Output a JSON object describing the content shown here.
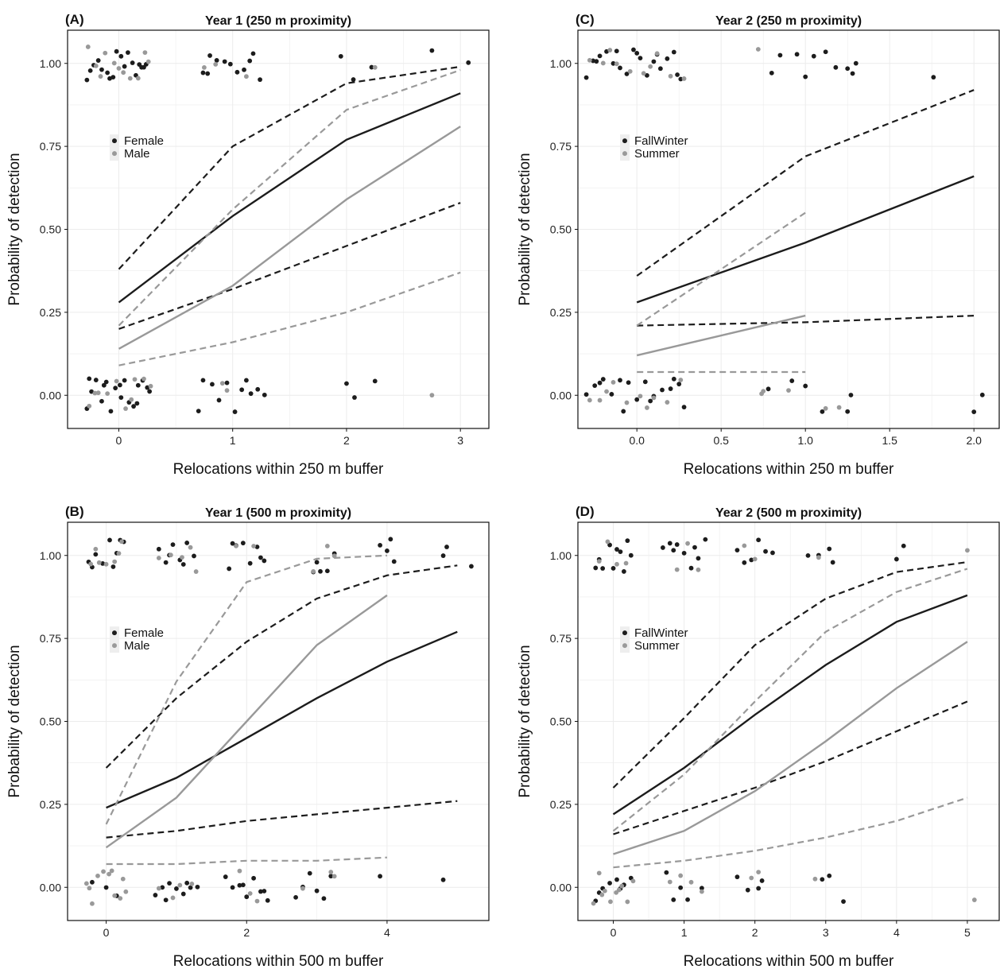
{
  "colors": {
    "series1": "#1c1c1c",
    "series2": "#999999",
    "grid": "#ececec",
    "frame": "#111111"
  },
  "chart_data": [
    {
      "panel": "(A)",
      "type": "line",
      "title": "Year 1 (250 m proximity)",
      "xlabel": "Relocations within 250 m buffer",
      "ylabel": "Probability of detection",
      "xlim": [
        -0.45,
        3.25
      ],
      "ylim": [
        -0.1,
        1.1
      ],
      "xticks": [
        0,
        1,
        2,
        3
      ],
      "xtick_labels": [
        "0",
        "1",
        "2",
        "3"
      ],
      "yticks": [
        0,
        0.25,
        0.5,
        0.75,
        1
      ],
      "ytick_labels": [
        "0.00",
        "0.25",
        "0.50",
        "0.75",
        "1.00"
      ],
      "grid": true,
      "legend": {
        "placement": "upper-left",
        "entries": [
          "Female",
          "Male"
        ]
      },
      "series": [
        {
          "name": "Female",
          "fit": {
            "x": [
              0,
              1,
              2,
              3
            ],
            "y": [
              0.28,
              0.54,
              0.77,
              0.91
            ]
          },
          "upper": {
            "x": [
              0,
              1,
              2,
              3
            ],
            "y": [
              0.38,
              0.75,
              0.94,
              0.99
            ]
          },
          "lower": {
            "x": [
              0,
              1,
              2,
              3
            ],
            "y": [
              0.2,
              0.32,
              0.45,
              0.58
            ]
          },
          "points": [
            {
              "x": [
                -0.28,
                -0.22,
                -0.15,
                -0.08,
                -0.02,
                0.05,
                0.12,
                0.18,
                0.24,
                -0.25,
                -0.1,
                0.02,
                0.15,
                0.2,
                -0.18,
                0.08,
                0.22,
                -0.05,
                0.74,
                0.8,
                0.86,
                0.93,
                0.98,
                1.04,
                1.1,
                1.18,
                1.24,
                0.78,
                1.15,
                1.95,
                2.06,
                2.22,
                2.75,
                3.07
              ],
              "y": 1
            },
            {
              "x": [
                -0.28,
                -0.24,
                -0.2,
                -0.15,
                -0.11,
                -0.07,
                -0.03,
                0.01,
                0.05,
                0.09,
                0.13,
                0.17,
                0.21,
                0.25,
                -0.26,
                -0.13,
                0.02,
                0.16,
                0.27,
                0.7,
                0.74,
                0.82,
                0.88,
                0.95,
                1.02,
                1.08,
                1.12,
                1.16,
                1.22,
                1.28,
                2.0,
                2.07,
                2.25
              ],
              "y": 0
            }
          ]
        },
        {
          "name": "Male",
          "fit": {
            "x": [
              0,
              1,
              2,
              3
            ],
            "y": [
              0.14,
              0.33,
              0.59,
              0.81
            ]
          },
          "upper": {
            "x": [
              0,
              1,
              2,
              3
            ],
            "y": [
              0.21,
              0.56,
              0.86,
              0.98
            ]
          },
          "lower": {
            "x": [
              0,
              1,
              2,
              3
            ],
            "y": [
              0.09,
              0.16,
              0.25,
              0.37
            ]
          },
          "points": [
            {
              "x": [
                -0.27,
                -0.2,
                -0.12,
                -0.04,
                0.04,
                0.1,
                0.17,
                0.23,
                -0.16,
                0.0,
                0.26,
                0.75,
                0.85,
                1.12,
                2.25
              ],
              "y": 1
            },
            {
              "x": [
                -0.26,
                -0.18,
                -0.1,
                -0.02,
                0.06,
                0.14,
                0.22,
                0.28,
                -0.21,
                0.11,
                0.91,
                0.95,
                2.75
              ],
              "y": 0
            }
          ]
        }
      ]
    },
    {
      "panel": "(B)",
      "type": "line",
      "title": "Year 1 (500 m proximity)",
      "xlabel": "Relocations within 500 m buffer",
      "ylabel": "Probability of detection",
      "xlim": [
        -0.55,
        5.45
      ],
      "ylim": [
        -0.1,
        1.1
      ],
      "xticks": [
        0,
        2,
        4
      ],
      "xtick_labels": [
        "0",
        "2",
        "4"
      ],
      "yticks": [
        0,
        0.25,
        0.5,
        0.75,
        1
      ],
      "ytick_labels": [
        "0.00",
        "0.25",
        "0.50",
        "0.75",
        "1.00"
      ],
      "grid": true,
      "legend": {
        "placement": "upper-left",
        "entries": [
          "Female",
          "Male"
        ]
      },
      "series": [
        {
          "name": "Female",
          "fit": {
            "x": [
              0,
              1,
              2,
              3,
              4,
              5
            ],
            "y": [
              0.24,
              0.33,
              0.45,
              0.57,
              0.68,
              0.77
            ]
          },
          "upper": {
            "x": [
              0,
              1,
              2,
              3,
              4,
              5
            ],
            "y": [
              0.36,
              0.57,
              0.74,
              0.87,
              0.94,
              0.97
            ]
          },
          "lower": {
            "x": [
              0,
              1,
              2,
              3,
              4,
              5
            ],
            "y": [
              0.15,
              0.17,
              0.2,
              0.22,
              0.24,
              0.26
            ]
          },
          "points": [
            {
              "x": [
                -0.25,
                -0.15,
                -0.05,
                0.05,
                0.15,
                0.25,
                -0.2,
                0.1,
                0.2,
                0.75,
                0.85,
                0.95,
                1.05,
                1.15,
                1.25,
                0.9,
                1.1,
                1.75,
                1.85,
                1.95,
                2.05,
                2.15,
                2.25,
                1.8,
                2.2,
                2.95,
                3.05,
                3.15,
                3.25,
                3.0,
                3.9,
                4.1,
                4.0,
                4.05,
                4.8,
                4.85,
                5.2
              ],
              "y": 1
            },
            {
              "x": [
                -0.2,
                0.0,
                0.15,
                0.7,
                0.8,
                0.9,
                1.0,
                1.1,
                1.2,
                1.3,
                0.85,
                1.15,
                1.7,
                1.8,
                1.9,
                2.0,
                2.1,
                2.2,
                2.3,
                1.95,
                2.25,
                2.7,
                2.8,
                2.9,
                3.0,
                3.1,
                3.2,
                3.9,
                4.8
              ],
              "y": 0
            }
          ]
        },
        {
          "name": "Male",
          "fit": {
            "x": [
              0,
              1,
              2,
              3,
              4
            ],
            "y": [
              0.12,
              0.27,
              0.5,
              0.73,
              0.88
            ]
          },
          "upper": {
            "x": [
              0,
              1,
              2,
              3,
              4
            ],
            "y": [
              0.19,
              0.62,
              0.92,
              0.99,
              1.0
            ]
          },
          "lower": {
            "x": [
              0,
              1,
              2,
              3,
              4
            ],
            "y": [
              0.07,
              0.07,
              0.08,
              0.08,
              0.09
            ]
          },
          "points": [
            {
              "x": [
                -0.22,
                -0.1,
                0.0,
                0.12,
                0.22,
                -0.15,
                0.18,
                0.75,
                0.92,
                1.08,
                1.2,
                1.28,
                1.85,
                2.1,
                2.95,
                3.15,
                3.25
              ],
              "y": 1
            },
            {
              "x": [
                -0.28,
                -0.2,
                -0.12,
                -0.04,
                0.04,
                0.12,
                0.2,
                0.28,
                -0.24,
                0.08,
                0.24,
                0.75,
                0.95,
                1.05,
                1.22,
                1.9,
                2.05,
                2.15,
                2.8,
                3.2,
                3.25
              ],
              "y": 0
            }
          ]
        }
      ]
    },
    {
      "panel": "(C)",
      "type": "line",
      "title": "Year 2 (250 m proximity)",
      "xlabel": "Relocations within 250 m buffer",
      "ylabel": "Probability of detection",
      "xlim": [
        -0.35,
        2.15
      ],
      "ylim": [
        -0.1,
        1.1
      ],
      "xticks": [
        0,
        0.5,
        1,
        1.5,
        2
      ],
      "xtick_labels": [
        "0.0",
        "0.5",
        "1.0",
        "1.5",
        "2.0"
      ],
      "yticks": [
        0,
        0.25,
        0.5,
        0.75,
        1
      ],
      "ytick_labels": [
        "0.00",
        "0.25",
        "0.50",
        "0.75",
        "1.00"
      ],
      "grid": true,
      "legend": {
        "placement": "upper-left",
        "entries": [
          "FallWinter",
          "Summer"
        ]
      },
      "series": [
        {
          "name": "FallWinter",
          "fit": {
            "x": [
              0,
              1,
              2
            ],
            "y": [
              0.28,
              0.46,
              0.66
            ]
          },
          "upper": {
            "x": [
              0,
              1,
              2
            ],
            "y": [
              0.36,
              0.72,
              0.92
            ]
          },
          "lower": {
            "x": [
              0,
              1,
              2
            ],
            "y": [
              0.21,
              0.22,
              0.24
            ]
          },
          "points": [
            {
              "x": [
                -0.3,
                -0.26,
                -0.22,
                -0.18,
                -0.14,
                -0.1,
                -0.06,
                -0.02,
                0.02,
                0.06,
                0.1,
                0.14,
                0.18,
                0.22,
                0.26,
                -0.24,
                -0.12,
                0.0,
                0.12,
                0.24,
                0.8,
                0.85,
                0.95,
                1.0,
                1.05,
                1.12,
                1.18,
                1.25,
                1.3,
                1.28,
                1.76
              ],
              "y": 1
            },
            {
              "x": [
                -0.3,
                -0.25,
                -0.2,
                -0.15,
                -0.1,
                -0.05,
                0.0,
                0.05,
                0.1,
                0.15,
                0.2,
                0.25,
                0.28,
                -0.22,
                -0.08,
                0.08,
                0.22,
                0.78,
                0.92,
                1.0,
                1.1,
                1.25,
                1.27,
                2.0,
                2.05
              ],
              "y": 0
            }
          ]
        },
        {
          "name": "Summer",
          "fit": {
            "x": [
              0,
              1
            ],
            "y": [
              0.12,
              0.24
            ]
          },
          "upper": {
            "x": [
              0,
              1
            ],
            "y": [
              0.21,
              0.55
            ]
          },
          "lower": {
            "x": [
              0,
              1
            ],
            "y": [
              0.07,
              0.07
            ]
          },
          "points": [
            {
              "x": [
                -0.28,
                -0.2,
                -0.12,
                -0.04,
                0.04,
                0.12,
                0.2,
                0.28,
                -0.16,
                0.08,
                0.72
              ],
              "y": 1
            },
            {
              "x": [
                -0.28,
                -0.22,
                -0.14,
                -0.06,
                0.02,
                0.1,
                0.18,
                0.26,
                -0.18,
                0.06,
                0.74,
                0.75,
                0.9,
                1.12,
                1.2
              ],
              "y": 0
            }
          ]
        }
      ]
    },
    {
      "panel": "(D)",
      "type": "line",
      "title": "Year 2 (500 m proximity)",
      "xlabel": "Relocations within 500 m buffer",
      "ylabel": "Probability of detection",
      "xlim": [
        -0.5,
        5.45
      ],
      "ylim": [
        -0.1,
        1.1
      ],
      "xticks": [
        0,
        1,
        2,
        3,
        4,
        5
      ],
      "xtick_labels": [
        "0",
        "1",
        "2",
        "3",
        "4",
        "5"
      ],
      "yticks": [
        0,
        0.25,
        0.5,
        0.75,
        1
      ],
      "ytick_labels": [
        "0.00",
        "0.25",
        "0.50",
        "0.75",
        "1.00"
      ],
      "grid": true,
      "legend": {
        "placement": "upper-left",
        "entries": [
          "FallWinter",
          "Summer"
        ]
      },
      "series": [
        {
          "name": "FallWinter",
          "fit": {
            "x": [
              0,
              1,
              2,
              3,
              4,
              5
            ],
            "y": [
              0.22,
              0.36,
              0.52,
              0.67,
              0.8,
              0.88
            ]
          },
          "upper": {
            "x": [
              0,
              1,
              2,
              3,
              4,
              5
            ],
            "y": [
              0.3,
              0.51,
              0.73,
              0.87,
              0.95,
              0.98
            ]
          },
          "lower": {
            "x": [
              0,
              1,
              2,
              3,
              4,
              5
            ],
            "y": [
              0.16,
              0.23,
              0.3,
              0.38,
              0.47,
              0.56
            ]
          },
          "points": [
            {
              "x": [
                -0.25,
                -0.15,
                -0.05,
                0.05,
                0.15,
                0.25,
                -0.2,
                0.1,
                0.2,
                0.0,
                0.7,
                0.8,
                0.9,
                1.0,
                1.1,
                1.2,
                1.3,
                0.85,
                1.15,
                1.75,
                1.85,
                1.95,
                2.05,
                2.15,
                2.25,
                2.75,
                2.9,
                3.05,
                3.1,
                4.0,
                4.1
              ],
              "y": 1
            },
            {
              "x": [
                -0.25,
                -0.15,
                -0.05,
                0.05,
                0.15,
                0.25,
                -0.2,
                0.1,
                0.75,
                0.85,
                1.05,
                1.25,
                0.95,
                1.75,
                1.9,
                2.05,
                2.1,
                2.95,
                3.05,
                3.25
              ],
              "y": 0
            }
          ]
        },
        {
          "name": "Summer",
          "fit": {
            "x": [
              0,
              1,
              2,
              3,
              4,
              5
            ],
            "y": [
              0.1,
              0.17,
              0.29,
              0.44,
              0.6,
              0.74
            ]
          },
          "upper": {
            "x": [
              0,
              1,
              2,
              3,
              4,
              5
            ],
            "y": [
              0.17,
              0.34,
              0.56,
              0.77,
              0.89,
              0.96
            ]
          },
          "lower": {
            "x": [
              0,
              1,
              2,
              3,
              4,
              5
            ],
            "y": [
              0.06,
              0.08,
              0.11,
              0.15,
              0.2,
              0.27
            ]
          },
          "points": [
            {
              "x": [
                -0.2,
                -0.08,
                0.05,
                0.18,
                0.9,
                1.05,
                1.2,
                1.85,
                2.0,
                2.9,
                5.0
              ],
              "y": 1
            },
            {
              "x": [
                -0.28,
                -0.2,
                -0.12,
                -0.04,
                0.04,
                0.12,
                0.2,
                0.28,
                -0.16,
                0.08,
                0.8,
                0.95,
                1.1,
                1.25,
                1.95,
                2.05,
                2.85,
                5.1
              ],
              "y": 0
            }
          ]
        }
      ]
    }
  ]
}
